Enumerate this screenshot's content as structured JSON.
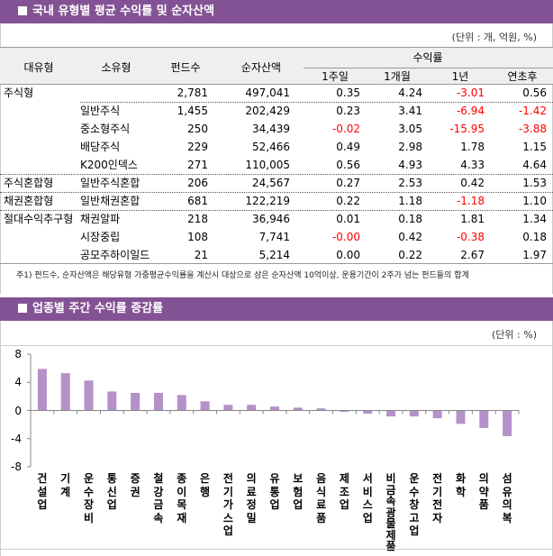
{
  "section1": {
    "title": "국내 유형별 평균 수익률 및 순자산액",
    "unit": "(단위 : 개, 억원, %)"
  },
  "table": {
    "headers": {
      "major": "대유형",
      "minor": "소유형",
      "count": "펀드수",
      "assets": "순자산액",
      "returns": "수익률",
      "w1": "1주일",
      "m1": "1개월",
      "y1": "1년",
      "ytd": "연초후"
    },
    "rows": [
      [
        "주식형",
        "",
        "2,781",
        "497,041",
        "0.35",
        "4.24",
        "-3.01",
        "0.56"
      ],
      [
        "",
        "일반주식",
        "1,455",
        "202,429",
        "0.23",
        "3.41",
        "-6.94",
        "-1.42"
      ],
      [
        "",
        "중소형주식",
        "250",
        "34,439",
        "-0.02",
        "3.05",
        "-15.95",
        "-3.88"
      ],
      [
        "",
        "배당주식",
        "229",
        "52,466",
        "0.49",
        "2.98",
        "1.78",
        "1.15"
      ],
      [
        "",
        "K200인덱스",
        "271",
        "110,005",
        "0.56",
        "4.93",
        "4.33",
        "4.64"
      ],
      [
        "주식혼합형",
        "일반주식혼합",
        "206",
        "24,567",
        "0.27",
        "2.53",
        "0.42",
        "1.53"
      ],
      [
        "채권혼합형",
        "일반채권혼합",
        "681",
        "122,219",
        "0.22",
        "1.18",
        "-1.18",
        "1.10"
      ],
      [
        "절대수익추구형",
        "채권알파",
        "218",
        "36,946",
        "0.01",
        "0.18",
        "1.81",
        "1.34"
      ],
      [
        "",
        "시장중립",
        "108",
        "7,741",
        "-0.00",
        "0.42",
        "-0.38",
        "0.18"
      ],
      [
        "",
        "공모주하이일드",
        "21",
        "5,214",
        "0.00",
        "0.22",
        "2.67",
        "1.97"
      ]
    ],
    "footnote": "주1) 펀드수, 순자산액은 해당유형 가중평균수익률을 계산시 대상으로 삼은 순자산액 10억이상, 운용기간이 2주가 넘는 펀드들의 합계",
    "negative_color": "#ff0000"
  },
  "section2": {
    "title": "업종별 주간 수익률 증감률",
    "unit": "(단위 : %)"
  },
  "chart_data": {
    "type": "bar",
    "categories": [
      "건 설 업",
      "기 계",
      "운 수 장 비",
      "통 신 업",
      "증 권",
      "철 강 금 속",
      "종 이 목 재",
      "은 행",
      "전 기 가 스 업",
      "의 료 정 밀",
      "유 통 업",
      "보 험 업",
      "음 식 료 품",
      "제 조 업",
      "서 비 스 업",
      "비금속광물제품",
      "운 수 창 고 업",
      "전 기 전 자",
      "화 학",
      "의 약 품",
      "섬 유 의 복"
    ],
    "values": [
      5.9,
      5.3,
      4.25,
      2.7,
      2.5,
      2.5,
      2.2,
      1.3,
      0.8,
      0.8,
      0.55,
      0.4,
      0.3,
      -0.2,
      -0.45,
      -0.85,
      -0.85,
      -1.1,
      -1.9,
      -2.5,
      -3.65
    ],
    "ylim": [
      -8,
      8
    ],
    "yticks": [
      "8",
      "4",
      "0",
      "-4",
      "-8"
    ],
    "grid": false,
    "bar_color": "#b491c8"
  },
  "colors": {
    "accent": "#835294"
  }
}
